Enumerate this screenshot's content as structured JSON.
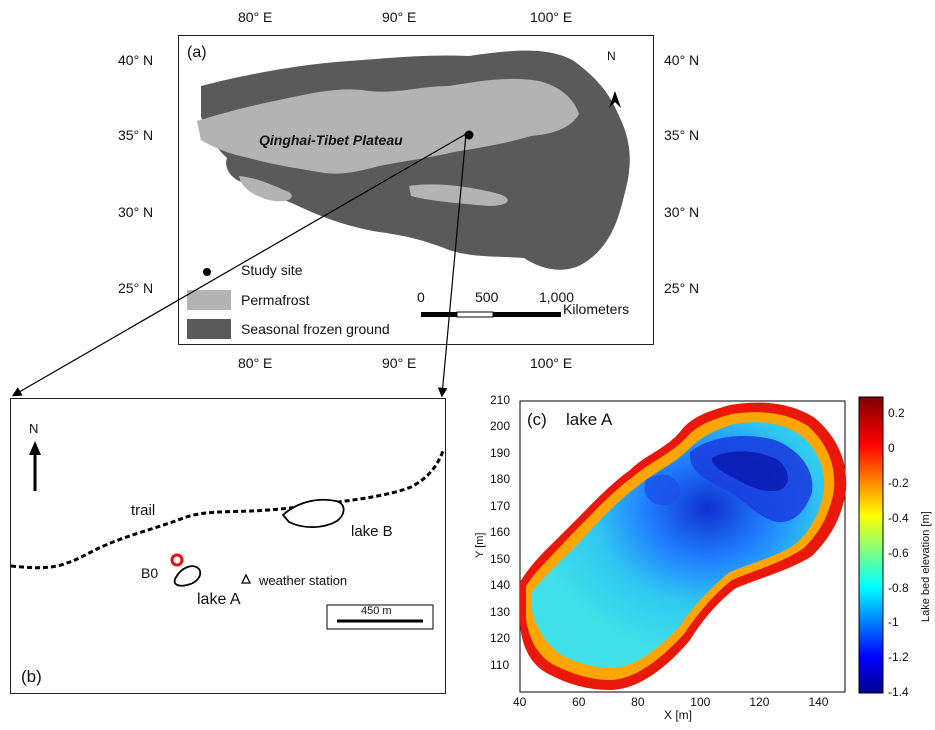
{
  "panel_a": {
    "label": "(a)",
    "region_label": "Qinghai-Tibet Plateau",
    "north": "N",
    "lon_ticks": [
      "80° E",
      "90° E",
      "100° E"
    ],
    "lat_ticks": [
      "40° N",
      "35° N",
      "30° N",
      "25° N"
    ],
    "legend": {
      "study_site": "Study site",
      "permafrost": "Permafrost",
      "seasonal": "Seasonal frozen ground"
    },
    "scalebar": {
      "t0": "0",
      "t1": "500",
      "t2": "1,000",
      "unit": "Kilometers"
    },
    "colors": {
      "permafrost": "#b3b3b3",
      "seasonal": "#5a5a5a"
    }
  },
  "panel_b": {
    "label": "(b)",
    "north": "N",
    "trail": "trail",
    "lake_b": "lake B",
    "lake_a": "lake A",
    "b0": "B0",
    "weather_station": "weather station",
    "scalebar": "450 m",
    "marker_color": "#e01010"
  },
  "panel_c": {
    "label": "(c)",
    "title": "lake A",
    "xlabel": "X [m]",
    "ylabel": "Y [m]",
    "x_ticks": [
      "40",
      "60",
      "80",
      "100",
      "120",
      "140"
    ],
    "y_ticks": [
      "110",
      "120",
      "130",
      "140",
      "150",
      "160",
      "170",
      "180",
      "190",
      "200",
      "210"
    ],
    "colorbar_label": "Lake bed elevation [m]",
    "colorbar_ticks": [
      "0.2",
      "0",
      "-0.2",
      "-0.4",
      "-0.6",
      "-0.8",
      "-1",
      "-1.2",
      "-1.4"
    ]
  },
  "chart_data": {
    "type": "heatmap",
    "title": "lake A",
    "xlabel": "X [m]",
    "ylabel": "Y [m]",
    "xlim": [
      40,
      150
    ],
    "ylim": [
      100,
      210
    ],
    "colorbar": {
      "label": "Lake bed elevation [m]",
      "range": [
        -1.4,
        0.3
      ],
      "colormap": "jet"
    }
  }
}
